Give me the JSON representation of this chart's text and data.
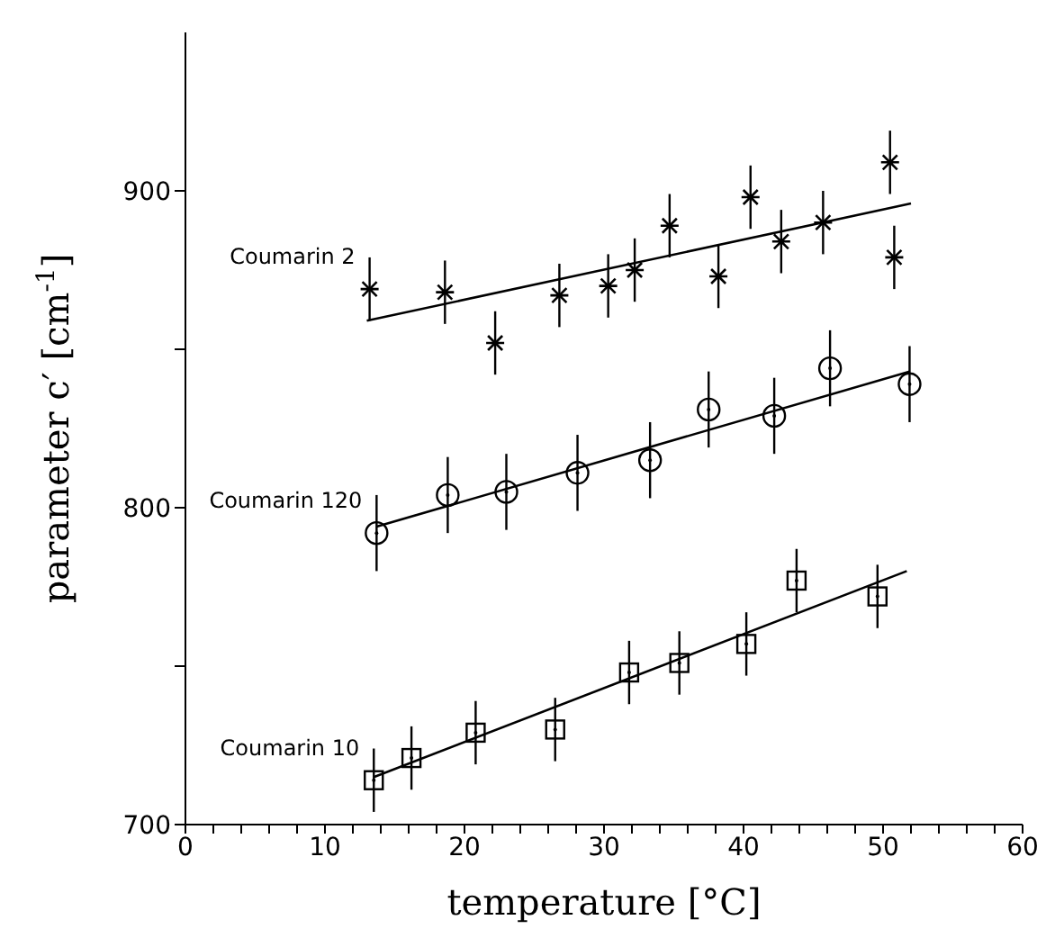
{
  "chart_data": {
    "type": "scatter",
    "xlabel": "temperature [°C]",
    "ylabel": "parameter c′ [cm$^{-1}$]",
    "xlim": [
      0,
      60
    ],
    "xticks": [
      0,
      {
        "value": 2,
        "label": null
      },
      {
        "value": 4,
        "label": null
      },
      {
        "value": 6,
        "label": null
      },
      {
        "value": 8,
        "label": null
      },
      10,
      {
        "value": 12,
        "label": null
      },
      {
        "value": 14,
        "label": null
      },
      {
        "value": 16,
        "label": null
      },
      {
        "value": 18,
        "label": null
      },
      20,
      {
        "value": 22,
        "label": null
      },
      {
        "value": 24,
        "label": null
      },
      {
        "value": 26,
        "label": null
      },
      {
        "value": 28,
        "label": null
      },
      30,
      {
        "value": 32,
        "label": null
      },
      {
        "value": 34,
        "label": null
      },
      {
        "value": 36,
        "label": null
      },
      {
        "value": 38,
        "label": null
      },
      40,
      {
        "value": 42,
        "label": null
      },
      {
        "value": 44,
        "label": null
      },
      {
        "value": 46,
        "label": null
      },
      {
        "value": 48,
        "label": null
      },
      50,
      {
        "value": 52,
        "label": null
      },
      {
        "value": 54,
        "label": null
      },
      {
        "value": 56,
        "label": null
      },
      {
        "value": 58,
        "label": null
      },
      60
    ],
    "ylim": [
      700,
      950
    ],
    "yticks": [
      700,
      {
        "value": 750,
        "label": null
      },
      800,
      {
        "value": 850,
        "label": null
      },
      900
    ],
    "series": [
      {
        "name": "Coumarin 2",
        "color": "#000000",
        "marker": "cross",
        "x": [
          13.2,
          18.6,
          22.2,
          26.8,
          30.3,
          32.2,
          34.7,
          38.2,
          40.5,
          42.7,
          45.7,
          50.5,
          50.8
        ],
        "values": [
          869,
          868,
          852,
          867,
          870,
          875,
          889,
          873,
          898,
          884,
          890,
          909,
          879
        ],
        "errors": [
          10,
          10,
          10,
          10,
          10,
          10,
          10,
          10,
          10,
          10,
          10,
          10,
          10
        ]
      },
      {
        "type": "line",
        "color": "#000000",
        "marker": "none",
        "x": [
          13,
          52
        ],
        "values": [
          859,
          896
        ]
      },
      {
        "name": "Coumarin 120",
        "color": "#000000",
        "marker": "circle",
        "x": [
          13.7,
          18.8,
          23.0,
          28.1,
          33.3,
          37.5,
          42.2,
          46.2,
          51.9
        ],
        "values": [
          792,
          804,
          805,
          811,
          815,
          831,
          829,
          844,
          839
        ],
        "errors": [
          12,
          12,
          12,
          12,
          12,
          12,
          12,
          12,
          12
        ]
      },
      {
        "type": "line",
        "color": "#000000",
        "marker": "none",
        "x": [
          13.7,
          51.9
        ],
        "values": [
          794,
          843
        ]
      },
      {
        "name": "Coumarin 10",
        "color": "#000000",
        "marker": "square",
        "x": [
          13.5,
          16.2,
          20.8,
          26.5,
          31.8,
          35.4,
          40.2,
          43.8,
          49.6
        ],
        "values": [
          714,
          721,
          729,
          730,
          748,
          751,
          757,
          777,
          772
        ],
        "errors": [
          10,
          10,
          10,
          10,
          10,
          10,
          10,
          10,
          10
        ]
      },
      {
        "type": "line",
        "color": "#000000",
        "marker": "none",
        "x": [
          13.5,
          51.7
        ],
        "values": [
          715,
          780
        ]
      }
    ]
  }
}
